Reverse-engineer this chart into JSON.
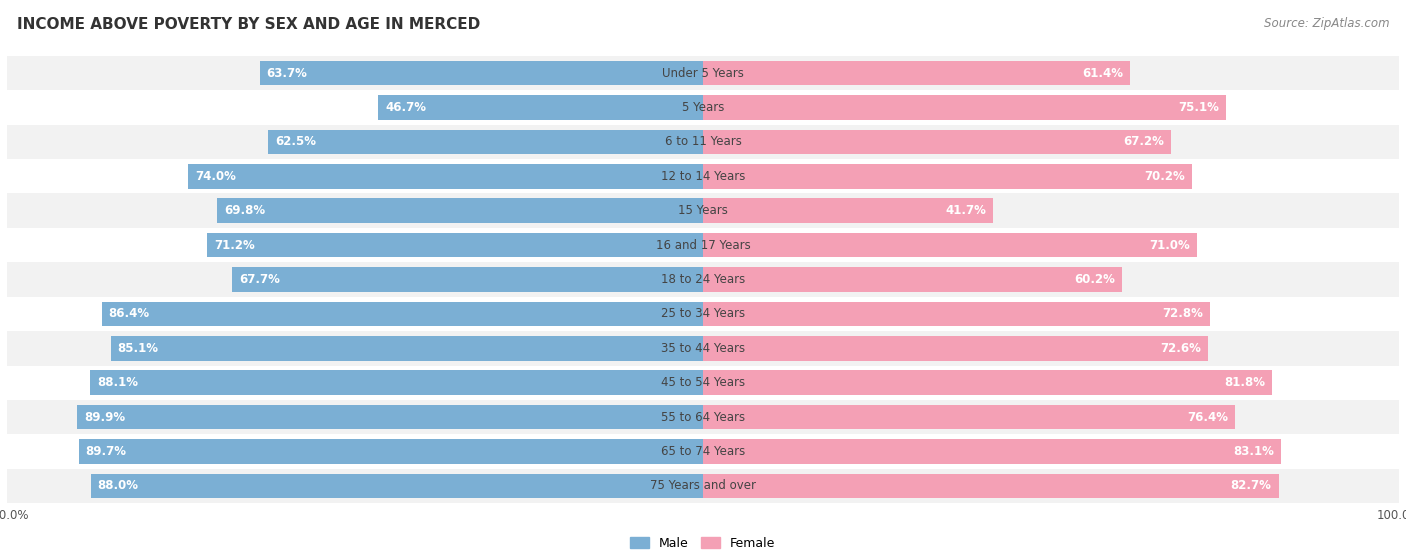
{
  "title": "INCOME ABOVE POVERTY BY SEX AND AGE IN MERCED",
  "source": "Source: ZipAtlas.com",
  "categories": [
    "Under 5 Years",
    "5 Years",
    "6 to 11 Years",
    "12 to 14 Years",
    "15 Years",
    "16 and 17 Years",
    "18 to 24 Years",
    "25 to 34 Years",
    "35 to 44 Years",
    "45 to 54 Years",
    "55 to 64 Years",
    "65 to 74 Years",
    "75 Years and over"
  ],
  "male_values": [
    63.7,
    46.7,
    62.5,
    74.0,
    69.8,
    71.2,
    67.7,
    86.4,
    85.1,
    88.1,
    89.9,
    89.7,
    88.0
  ],
  "female_values": [
    61.4,
    75.1,
    67.2,
    70.2,
    41.7,
    71.0,
    60.2,
    72.8,
    72.6,
    81.8,
    76.4,
    83.1,
    82.7
  ],
  "male_color": "#7bafd4",
  "female_color": "#f4a0b5",
  "male_label": "Male",
  "female_label": "Female",
  "bg_color": "#f2f2f2",
  "row_alt_color": "#ffffff",
  "title_fontsize": 11,
  "label_fontsize": 8.5,
  "tick_fontsize": 8.5,
  "source_fontsize": 8.5,
  "bar_height": 0.72
}
